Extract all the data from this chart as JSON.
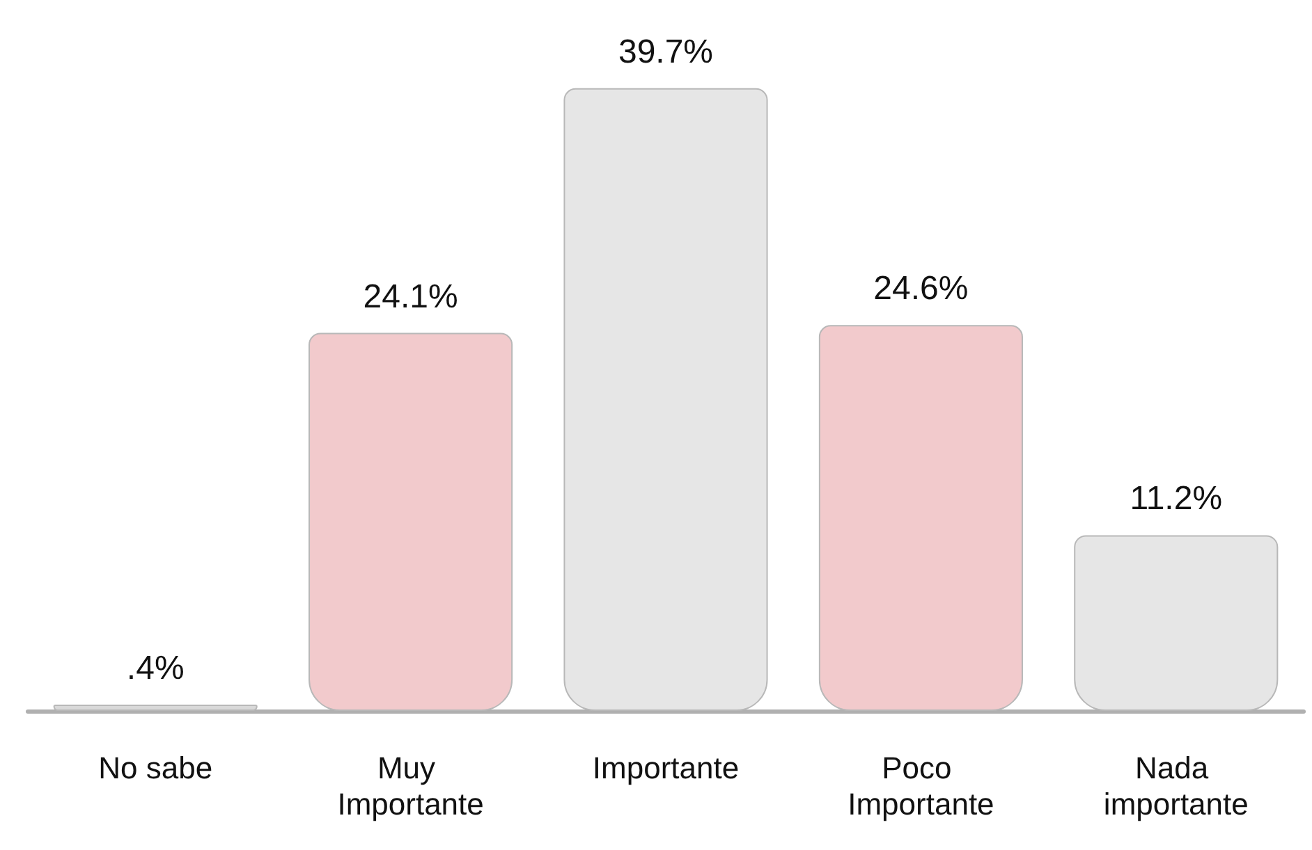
{
  "chart_data": {
    "type": "bar",
    "categories": [
      "No sabe",
      "Muy Importante",
      "Importante",
      "Poco Importante",
      "Nada importante"
    ],
    "values": [
      0.4,
      24.1,
      39.7,
      24.6,
      11.2
    ],
    "value_labels": [
      ".4%",
      "24.1%",
      "39.7%",
      "24.6%",
      "11.2%"
    ],
    "colors": [
      "#d9d9d9",
      "#f2cacc",
      "#e6e6e6",
      "#f2cacc",
      "#e6e6e6"
    ]
  }
}
